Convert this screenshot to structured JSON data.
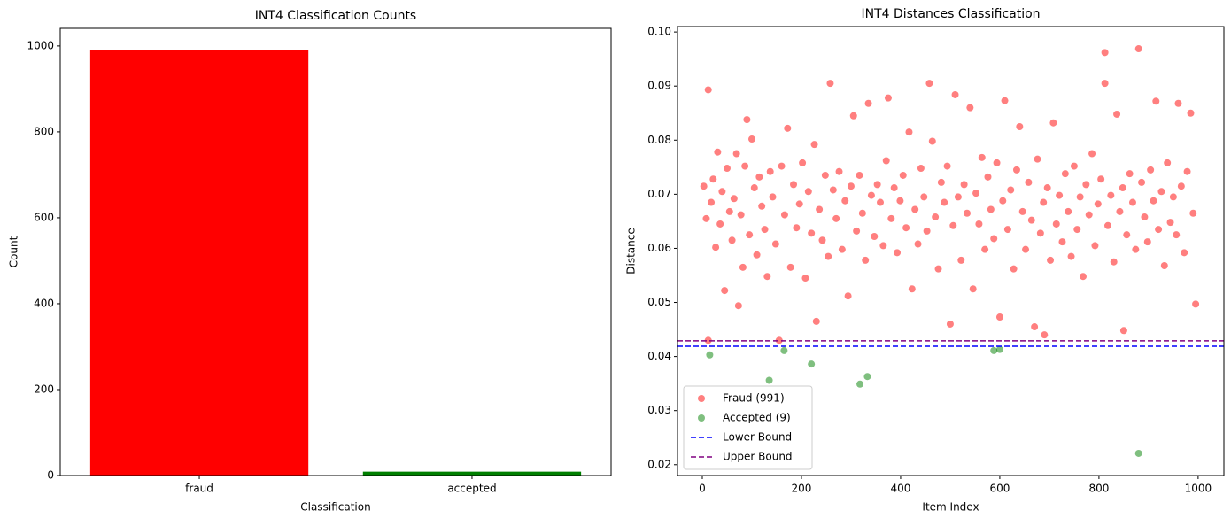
{
  "chart_data": [
    {
      "type": "bar",
      "title": "INT4 Classification Counts",
      "xlabel": "Classification",
      "ylabel": "Count",
      "categories": [
        "fraud",
        "accepted"
      ],
      "values": [
        991,
        9
      ],
      "colors": [
        "#ff0000",
        "#008000"
      ],
      "ylim": [
        0,
        1041
      ],
      "yticks": [
        0,
        200,
        400,
        600,
        800,
        1000
      ]
    },
    {
      "type": "scatter",
      "title": "INT4 Distances Classification",
      "xlabel": "Item Index",
      "ylabel": "Distance",
      "xlim": [
        -50,
        1052
      ],
      "xticks": [
        0,
        200,
        400,
        600,
        800,
        1000
      ],
      "ylim": [
        0.018,
        0.101
      ],
      "yticks": [
        0.02,
        0.03,
        0.04,
        0.05,
        0.06,
        0.07,
        0.08,
        0.09,
        {
          "value": 0.1,
          "label": "0.10"
        }
      ],
      "opacity": 0.5,
      "legend": "lower left",
      "series": [
        {
          "name": "Fraud (991)",
          "color": "#ff0000",
          "x": [
            3,
            8,
            12,
            12,
            18,
            22,
            27,
            31,
            36,
            40,
            45,
            50,
            55,
            60,
            64,
            69,
            73,
            78,
            82,
            86,
            90,
            95,
            100,
            105,
            110,
            115,
            120,
            126,
            131,
            137,
            142,
            148,
            155,
            160,
            166,
            172,
            178,
            184,
            190,
            196,
            202,
            208,
            214,
            220,
            226,
            230,
            236,
            242,
            248,
            254,
            258,
            264,
            270,
            276,
            282,
            288,
            294,
            300,
            305,
            311,
            317,
            323,
            329,
            335,
            341,
            347,
            353,
            359,
            365,
            371,
            375,
            381,
            387,
            393,
            399,
            405,
            411,
            417,
            423,
            429,
            435,
            441,
            447,
            453,
            458,
            464,
            470,
            476,
            482,
            488,
            494,
            500,
            506,
            510,
            516,
            522,
            528,
            534,
            540,
            546,
            552,
            558,
            564,
            570,
            576,
            582,
            588,
            594,
            600,
            606,
            610,
            616,
            622,
            628,
            634,
            640,
            646,
            652,
            658,
            664,
            670,
            676,
            682,
            688,
            690,
            696,
            702,
            708,
            714,
            720,
            726,
            732,
            738,
            744,
            750,
            756,
            762,
            768,
            774,
            780,
            786,
            792,
            798,
            804,
            812,
            812,
            818,
            824,
            830,
            836,
            842,
            848,
            850,
            856,
            862,
            868,
            874,
            880,
            886,
            892,
            898,
            904,
            910,
            915,
            920,
            926,
            932,
            938,
            944,
            950,
            956,
            960,
            966,
            972,
            978,
            985,
            990,
            995
          ],
          "values": [
            0.0715,
            0.0655,
            0.0893,
            0.043,
            0.0685,
            0.0728,
            0.0602,
            0.0778,
            0.0645,
            0.0705,
            0.0522,
            0.0748,
            0.0668,
            0.0615,
            0.0692,
            0.0775,
            0.0494,
            0.0662,
            0.0565,
            0.0752,
            0.0838,
            0.0625,
            0.0802,
            0.0712,
            0.0588,
            0.0732,
            0.0678,
            0.0635,
            0.0548,
            0.0742,
            0.0695,
            0.0608,
            0.043,
            0.0752,
            0.0662,
            0.0822,
            0.0565,
            0.0718,
            0.0638,
            0.0682,
            0.0758,
            0.0545,
            0.0705,
            0.0628,
            0.0792,
            0.0465,
            0.0672,
            0.0615,
            0.0735,
            0.0585,
            0.0905,
            0.0708,
            0.0655,
            0.0742,
            0.0598,
            0.0688,
            0.0512,
            0.0715,
            0.0845,
            0.0632,
            0.0735,
            0.0665,
            0.0578,
            0.0868,
            0.0698,
            0.0622,
            0.0718,
            0.0685,
            0.0605,
            0.0762,
            0.0878,
            0.0655,
            0.0712,
            0.0592,
            0.0688,
            0.0735,
            0.0638,
            0.0815,
            0.0525,
            0.0672,
            0.0608,
            0.0748,
            0.0695,
            0.0632,
            0.0905,
            0.0798,
            0.0658,
            0.0562,
            0.0722,
            0.0685,
            0.0752,
            0.046,
            0.0642,
            0.0884,
            0.0695,
            0.0578,
            0.0718,
            0.0665,
            0.086,
            0.0525,
            0.0702,
            0.0645,
            0.0768,
            0.0598,
            0.0732,
            0.0672,
            0.0618,
            0.0758,
            0.0473,
            0.0688,
            0.0873,
            0.0635,
            0.0708,
            0.0562,
            0.0745,
            0.0825,
            0.0668,
            0.0598,
            0.0722,
            0.0652,
            0.0455,
            0.0765,
            0.0628,
            0.0685,
            0.044,
            0.0712,
            0.0578,
            0.0832,
            0.0645,
            0.0698,
            0.0612,
            0.0738,
            0.0668,
            0.0585,
            0.0752,
            0.0635,
            0.0695,
            0.0548,
            0.0718,
            0.0662,
            0.0775,
            0.0605,
            0.0682,
            0.0728,
            0.0962,
            0.0905,
            0.0642,
            0.0698,
            0.0575,
            0.0848,
            0.0668,
            0.0712,
            0.0448,
            0.0625,
            0.0738,
            0.0685,
            0.0598,
            0.0969,
            0.0722,
            0.0658,
            0.0612,
            0.0745,
            0.0688,
            0.0872,
            0.0635,
            0.0705,
            0.0568,
            0.0758,
            0.0648,
            0.0695,
            0.0625,
            0.0868,
            0.0715,
            0.0592,
            0.0742,
            0.085,
            0.0665,
            0.0497
          ]
        },
        {
          "name": "Accepted (9)",
          "color": "#008000",
          "x": [
            15,
            135,
            165,
            220,
            318,
            333,
            588,
            600,
            880
          ],
          "values": [
            0.0403,
            0.0356,
            0.0411,
            0.0386,
            0.0349,
            0.0363,
            0.0411,
            0.0413,
            0.0221
          ]
        }
      ],
      "lines": [
        {
          "name": "Lower Bound",
          "value": 0.0419,
          "color": "#0000ff"
        },
        {
          "name": "Upper Bound",
          "value": 0.0429,
          "color": "#800080"
        }
      ]
    }
  ]
}
